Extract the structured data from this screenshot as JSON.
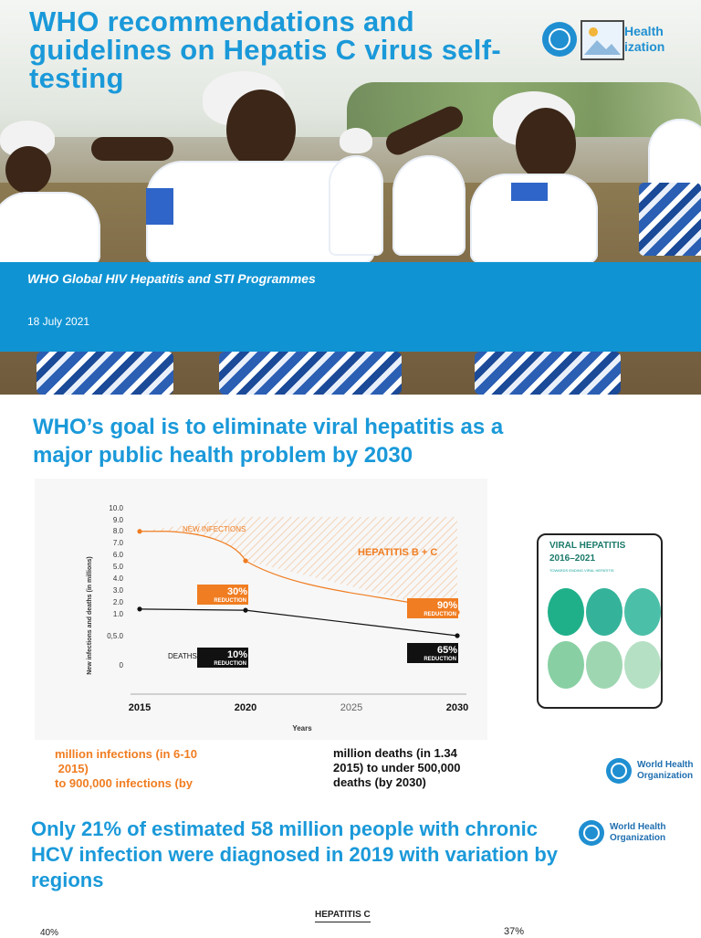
{
  "slide1": {
    "title": "WHO recommendations and guidelines on Hepatis C virus self-testing",
    "programme": "WHO Global HIV Hepatitis and STI Programmes",
    "date": "18 July 2021",
    "logo_text": "Health\nization",
    "logo_icon": "who-emblem-icon",
    "image_placeholder_icon": "image-placeholder-icon"
  },
  "slide2": {
    "title": "WHO’s goal is to eliminate viral hepatitis as a major public health problem by 2030",
    "note_infections": "million infections (in 6-10\n 2015)\nto 900,000 infections (by",
    "note_deaths": "million deaths (in 1.34\n2015) to under 500,000\ndeaths (by 2030)",
    "logo_text": "World Health\nOrganization",
    "cover": {
      "title": "VIRAL HEPATITIS\n2016–2021",
      "subtitle": "TOWARDS ENDING VIRAL HEPATITIS",
      "dot_colors": [
        "#1fb08a",
        "#34b39a",
        "#4cbfa8",
        "#88d0a3",
        "#9fd6b2",
        "#b5e0c4"
      ]
    }
  },
  "chart_data": {
    "type": "line",
    "x": [
      2015,
      2020,
      2030
    ],
    "xticks": [
      "2015",
      "2020",
      "2025",
      "2030"
    ],
    "yticks": [
      "10.0",
      "9.0",
      "8.0",
      "7.0",
      "6.0",
      "5.0",
      "4.0",
      "3.0",
      "2.0",
      "1.0",
      "0,5.0",
      "0"
    ],
    "xlabel": "Years",
    "ylabel": "New infections and deaths (in millions)",
    "series": [
      {
        "name": "NEW INFECTIONS",
        "values": [
          8.0,
          5.5,
          0.9
        ],
        "color": "#f07d21"
      },
      {
        "name": "DEATHS",
        "values": [
          1.4,
          1.3,
          0.5
        ],
        "color": "#111111"
      }
    ],
    "annotations": {
      "hep_label": "HEPATITIS B + C",
      "inf_2020": {
        "pct": "30%",
        "text": "REDUCTION"
      },
      "inf_2030": {
        "pct": "90%",
        "text": "REDUCTION"
      },
      "death_2020": {
        "pct": "10%",
        "text": "REDUCTION"
      },
      "death_2030": {
        "pct": "65%",
        "text": "REDUCTION"
      }
    },
    "colors": {
      "orange": "#f07d21",
      "black": "#111111",
      "hatch": "#f3c9a4"
    }
  },
  "slide3": {
    "title": "Only 21% of estimated 58 million people with chronic HCV infection were diagnosed in 2019 with variation by regions",
    "chart_label": "HEPATITIS C",
    "pct_left": "40%",
    "pct_right": "37%",
    "logo_text": "World Health\nOrganization"
  }
}
